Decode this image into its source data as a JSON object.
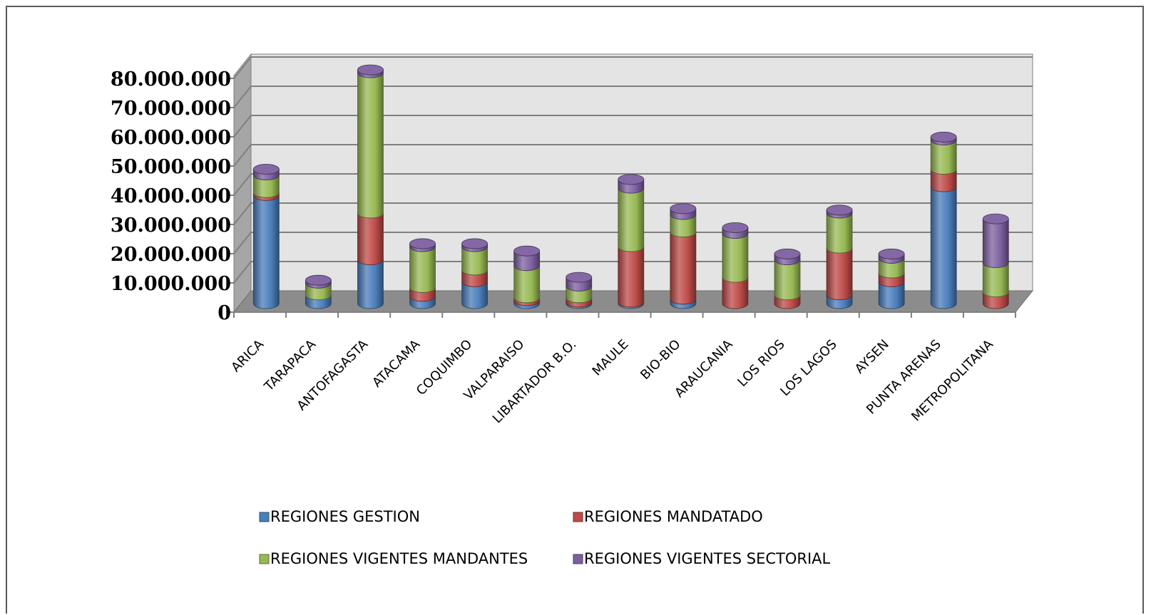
{
  "chart_data": {
    "type": "bar",
    "variant": "stacked-3d-cylinder",
    "title": "",
    "xlabel": "",
    "ylabel": "",
    "ylim": [
      0,
      80000000
    ],
    "y_ticks": [
      0,
      10000000,
      20000000,
      30000000,
      40000000,
      50000000,
      60000000,
      70000000,
      80000000
    ],
    "y_tick_labels": [
      "0",
      "10.000.000",
      "20.000.000",
      "30.000.000",
      "40.000.000",
      "50.000.000",
      "60.000.000",
      "70.000.000",
      "80.000.000"
    ],
    "grid": true,
    "legend_position": "bottom",
    "categories": [
      "ARICA",
      "TARAPACA",
      "ANTOFAGASTA",
      "ATACAMA",
      "COQUIMBO",
      "VALPARAISO",
      "LIBARTADOR B.O.",
      "MAULE",
      "BIO-BIO",
      "ARAUCANIA",
      "LOS RIOS",
      "LOS LAGOS",
      "AYSEN",
      "PUNTA ARENAS",
      "METROPOLITANA"
    ],
    "series": [
      {
        "name": "REGIONES GESTION",
        "color": "#4a7ebb",
        "values": [
          37000000,
          3000000,
          15000000,
          2500000,
          7500000,
          1000000,
          500000,
          500000,
          1500000,
          0,
          0,
          3000000,
          7500000,
          40000000,
          0
        ]
      },
      {
        "name": "REGIONES MANDATADO",
        "color": "#be4b48",
        "values": [
          1000000,
          0,
          16000000,
          3000000,
          4000000,
          1000000,
          1500000,
          19000000,
          23000000,
          9000000,
          3000000,
          16000000,
          3000000,
          6000000,
          4000000
        ]
      },
      {
        "name": "REGIONES VIGENTES  MANDANTES",
        "color": "#98b954",
        "values": [
          6000000,
          4000000,
          48000000,
          14000000,
          8000000,
          11000000,
          4000000,
          20000000,
          6000000,
          15000000,
          12000000,
          12000000,
          5000000,
          10000000,
          10000000
        ]
      },
      {
        "name": "REGIONES VIGENTES SECTORIAL",
        "color": "#7d60a0",
        "values": [
          2000000,
          1000000,
          1000000,
          1000000,
          1000000,
          5000000,
          3000000,
          3000000,
          2000000,
          2000000,
          2000000,
          1000000,
          1500000,
          1000000,
          15000000
        ]
      }
    ]
  }
}
